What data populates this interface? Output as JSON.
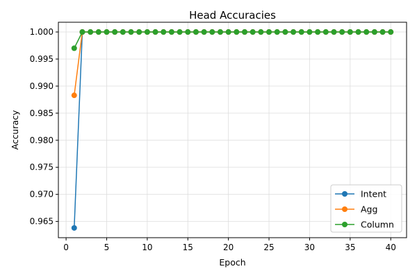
{
  "chart_data": {
    "type": "line",
    "title": "Head Accuracies",
    "xlabel": "Epoch",
    "ylabel": "Accuracy",
    "xlim": [
      -0.95,
      41.95
    ],
    "ylim": [
      0.962,
      1.0018
    ],
    "xticks": [
      0,
      5,
      10,
      15,
      20,
      25,
      30,
      35,
      40
    ],
    "yticks": [
      0.965,
      0.97,
      0.975,
      0.98,
      0.985,
      0.99,
      0.995,
      1.0
    ],
    "ytick_labels": [
      "0.965",
      "0.970",
      "0.975",
      "0.980",
      "0.985",
      "0.990",
      "0.995",
      "1.000"
    ],
    "grid": true,
    "legend_position": "bottom-right",
    "x": [
      1,
      2,
      3,
      4,
      5,
      6,
      7,
      8,
      9,
      10,
      11,
      12,
      13,
      14,
      15,
      16,
      17,
      18,
      19,
      20,
      21,
      22,
      23,
      24,
      25,
      26,
      27,
      28,
      29,
      30,
      31,
      32,
      33,
      34,
      35,
      36,
      37,
      38,
      39,
      40
    ],
    "series": [
      {
        "name": "Intent",
        "color": "#1f77b4",
        "values": [
          0.9638,
          1,
          1,
          1,
          1,
          1,
          1,
          1,
          1,
          1,
          1,
          1,
          1,
          1,
          1,
          1,
          1,
          1,
          1,
          1,
          1,
          1,
          1,
          1,
          1,
          1,
          1,
          1,
          1,
          1,
          1,
          1,
          1,
          1,
          1,
          1,
          1,
          1,
          1,
          1
        ]
      },
      {
        "name": "Agg",
        "color": "#ff7f0e",
        "values": [
          0.9883,
          1,
          1,
          1,
          1,
          1,
          1,
          1,
          1,
          1,
          1,
          1,
          1,
          1,
          1,
          1,
          1,
          1,
          1,
          1,
          1,
          1,
          1,
          1,
          1,
          1,
          1,
          1,
          1,
          1,
          1,
          1,
          1,
          1,
          1,
          1,
          1,
          1,
          1,
          1
        ]
      },
      {
        "name": "Column",
        "color": "#2ca02c",
        "values": [
          0.997,
          1,
          1,
          1,
          1,
          1,
          1,
          1,
          1,
          1,
          1,
          1,
          1,
          1,
          1,
          1,
          1,
          1,
          1,
          1,
          1,
          1,
          1,
          1,
          1,
          1,
          1,
          1,
          1,
          1,
          1,
          1,
          1,
          1,
          1,
          1,
          1,
          1,
          1,
          1
        ]
      }
    ]
  }
}
